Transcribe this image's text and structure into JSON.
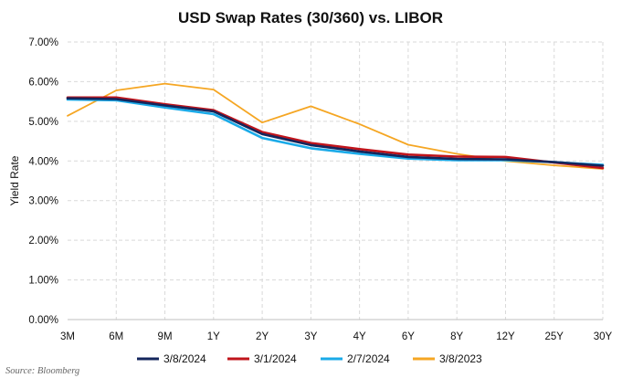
{
  "chart_data": {
    "type": "line",
    "title": "USD Swap Rates (30/360) vs. LIBOR",
    "xlabel": "",
    "ylabel": "Yield Rate",
    "ylim": [
      0,
      7
    ],
    "yticks": [
      "0.00%",
      "1.00%",
      "2.00%",
      "3.00%",
      "4.00%",
      "5.00%",
      "6.00%",
      "7.00%"
    ],
    "categories": [
      "3M",
      "6M",
      "9M",
      "1Y",
      "2Y",
      "3Y",
      "4Y",
      "6Y",
      "8Y",
      "12Y",
      "25Y",
      "30Y"
    ],
    "grid": true,
    "legend_position": "bottom",
    "series": [
      {
        "name": "3/8/2024",
        "color": "#14265c",
        "values": [
          5.58,
          5.56,
          5.4,
          5.25,
          4.68,
          4.4,
          4.24,
          4.1,
          4.05,
          4.04,
          3.97,
          3.88
        ]
      },
      {
        "name": "3/1/2024",
        "color": "#c0141b",
        "values": [
          5.6,
          5.6,
          5.43,
          5.28,
          4.73,
          4.45,
          4.3,
          4.16,
          4.11,
          4.1,
          3.96,
          3.82
        ]
      },
      {
        "name": "2/7/2024",
        "color": "#1aaae8",
        "values": [
          5.55,
          5.53,
          5.35,
          5.18,
          4.58,
          4.32,
          4.18,
          4.06,
          4.02,
          4.02,
          3.97,
          3.9
        ]
      },
      {
        "name": "3/8/2023",
        "color": "#f5a623",
        "values": [
          5.14,
          5.78,
          5.95,
          5.8,
          4.97,
          5.38,
          4.93,
          4.41,
          4.18,
          4.0,
          3.89,
          3.8
        ]
      }
    ]
  },
  "source": "Source: Bloomberg"
}
